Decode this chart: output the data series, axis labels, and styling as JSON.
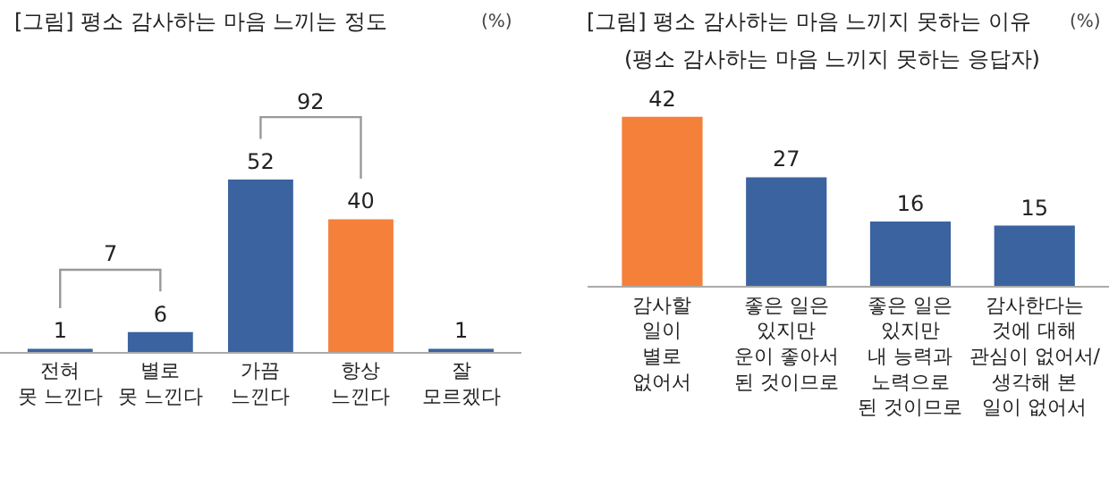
{
  "chart_data": [
    {
      "type": "bar",
      "title": "[그림] 평소 감사하는 마음 느끼는 정도",
      "ylabel": "(%)",
      "categories": [
        "전혀\n못 느낀다",
        "별로\n못 느낀다",
        "가끔\n느낀다",
        "항상\n느낀다",
        "잘\n모르겠다"
      ],
      "values": [
        1,
        6,
        52,
        40,
        1
      ],
      "colors": [
        "#3a63a0",
        "#3a63a0",
        "#3a63a0",
        "#f5803a",
        "#3a63a0"
      ],
      "data_labels": true,
      "tick_labels": "x",
      "annotations": [
        "7",
        "92"
      ]
    },
    {
      "type": "bar",
      "title": "[그림] 평소 감사하는 마음 느끼지 못하는 이유",
      "subtitle": "(평소 감사하는 마음 느끼지 못하는 응답자)",
      "ylabel": "(%)",
      "categories": [
        "감사할\n일이\n별로\n없어서",
        "좋은 일은\n있지만\n운이 좋아서\n된 것이므로",
        "좋은 일은\n있지만\n내 능력과\n노력으로\n된 것이므로",
        "감사한다는\n것에 대해\n관심이 없어서/\n생각해 본\n일이 없어서"
      ],
      "values": [
        42,
        27,
        16,
        15
      ],
      "colors": [
        "#f5803a",
        "#3a63a0",
        "#3a63a0",
        "#3a63a0"
      ],
      "data_labels": true,
      "tick_labels": "x"
    }
  ]
}
